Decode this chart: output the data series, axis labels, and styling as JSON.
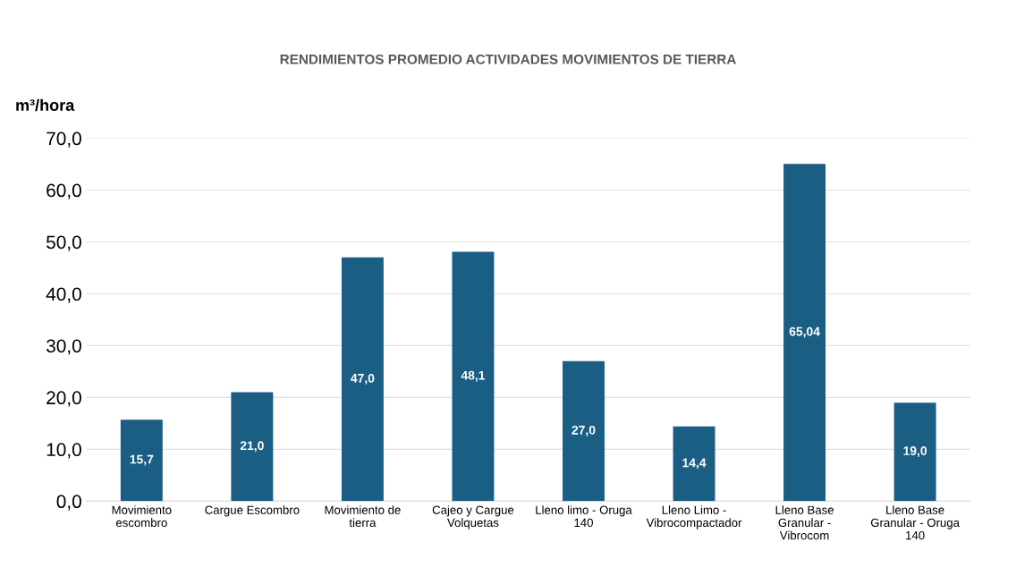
{
  "chart_data": {
    "type": "bar",
    "title": "RENDIMIENTOS PROMEDIO ACTIVIDADES MOVIMIENTOS DE TIERRA",
    "ylabel": "m³/hora",
    "categories": [
      "Movimiento\nescombro",
      "Cargue Escombro",
      "Movimiento de\ntierra",
      "Cajeo y Cargue\nVolquetas",
      "Lleno limo - Oruga\n140",
      "Lleno Limo -\nVibrocompactador",
      "Lleno Base\nGranular -\nVibrocom",
      "Lleno Base\nGranular - Oruga\n140"
    ],
    "values": [
      15.7,
      21.0,
      47.0,
      48.1,
      27.0,
      14.4,
      65.04,
      19.0
    ],
    "value_labels": [
      "15,7",
      "21,0",
      "47,0",
      "48,1",
      "27,0",
      "14,4",
      "65,04",
      "19,0"
    ],
    "color": "#1b5e84",
    "ylim": [
      0,
      70
    ],
    "yticks": [
      {
        "value": 0,
        "label": "0,0"
      },
      {
        "value": 10,
        "label": "10,0"
      },
      {
        "value": 20,
        "label": "20,0"
      },
      {
        "value": 30,
        "label": "30,0"
      },
      {
        "value": 40,
        "label": "40,0"
      },
      {
        "value": 50,
        "label": "50,0"
      },
      {
        "value": 60,
        "label": "60,0"
      },
      {
        "value": 70,
        "label": "70,0"
      }
    ],
    "grid": "y"
  }
}
